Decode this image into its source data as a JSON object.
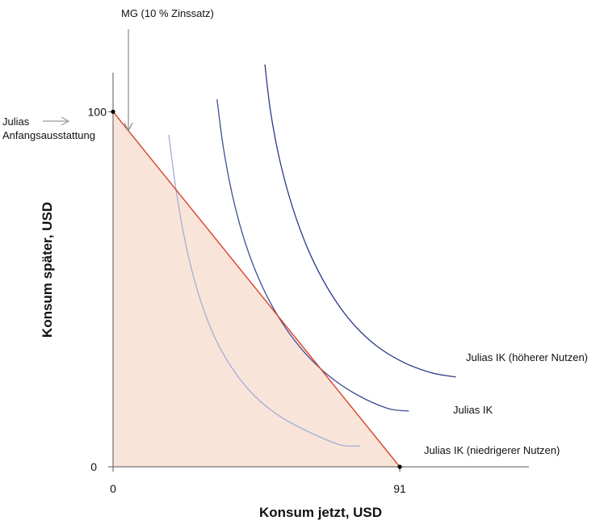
{
  "chart_data": {
    "type": "line",
    "xlabel": "Konsum jetzt, USD",
    "ylabel": "Konsum später, USD",
    "xlim": [
      0,
      132
    ],
    "ylim": [
      0,
      111
    ],
    "x_ticks": [
      {
        "value": 0,
        "label": "0"
      },
      {
        "value": 91,
        "label": "91"
      }
    ],
    "y_ticks": [
      {
        "value": 0,
        "label": "0"
      },
      {
        "value": 100,
        "label": "100"
      }
    ],
    "budget_line": {
      "points": [
        [
          0,
          100
        ],
        [
          91,
          0
        ]
      ],
      "color": "#d9432b",
      "fill": "#f9e4da"
    },
    "endowment_point": [
      0,
      100
    ],
    "endpoint": [
      91,
      0
    ],
    "series": [
      {
        "name": "Julias IK (niedrigerer Nutzen)",
        "color": "#a4aed6",
        "points": [
          [
            17.7,
            93.5
          ],
          [
            20,
            78
          ],
          [
            23,
            63
          ],
          [
            27,
            49
          ],
          [
            32,
            37
          ],
          [
            38,
            27.5
          ],
          [
            45,
            19.9
          ],
          [
            53,
            14.2
          ],
          [
            62,
            9.9
          ],
          [
            72,
            6.2
          ],
          [
            78.4,
            5.9
          ]
        ]
      },
      {
        "name": "Julias IK",
        "color": "#3d4d94",
        "points": [
          [
            33,
            103.5
          ],
          [
            35,
            90
          ],
          [
            38,
            76
          ],
          [
            42,
            63
          ],
          [
            47,
            51.5
          ],
          [
            53,
            41.5
          ],
          [
            60,
            33
          ],
          [
            68,
            26
          ],
          [
            77,
            20.5
          ],
          [
            87,
            16.5
          ],
          [
            93.9,
            15.7
          ]
        ]
      },
      {
        "name": "Julias IK (höherer Nutzen)",
        "color": "#2c3a87",
        "points": [
          [
            48.2,
            113.3
          ],
          [
            50,
            100
          ],
          [
            53,
            86
          ],
          [
            57,
            73
          ],
          [
            62,
            61
          ],
          [
            68,
            50.5
          ],
          [
            75,
            41.5
          ],
          [
            83,
            34.5
          ],
          [
            92,
            29.5
          ],
          [
            101,
            26.5
          ],
          [
            108.8,
            25.3
          ]
        ]
      }
    ],
    "annotations": {
      "mg_label": "MG (10 % Zinssatz)",
      "endowment_line1": "Julias",
      "endowment_line2": "Anfangsausstattung"
    }
  }
}
